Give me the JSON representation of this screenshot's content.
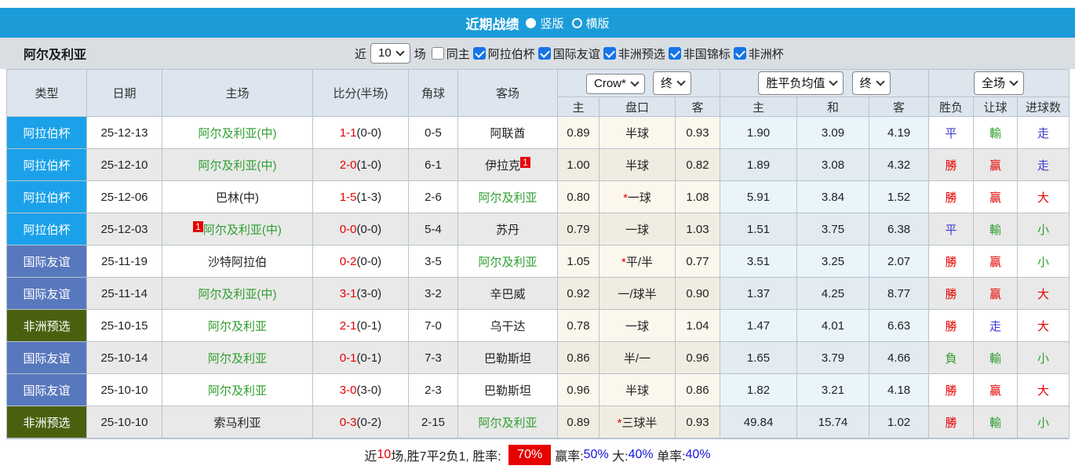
{
  "colors": {
    "header-blue": "#1b9cd9",
    "win-red": "#e60000",
    "lose-green": "#2f9e2f",
    "draw-blue": "#3b3bd1",
    "team-green": "#2f9e2f",
    "link-blue": "#1414dd"
  },
  "title_bar": {
    "title": "近期战绩",
    "layout_options": [
      {
        "label": "竖版",
        "selected": true
      },
      {
        "label": "横版",
        "selected": false
      }
    ]
  },
  "filter_bar": {
    "team_name": "阿尔及利亚",
    "recent_label": "近",
    "recent_count": "10",
    "games_label": "场",
    "checkboxes": [
      {
        "label": "同主",
        "checked": false
      },
      {
        "label": "阿拉伯杯",
        "checked": true
      },
      {
        "label": "国际友谊",
        "checked": true
      },
      {
        "label": "非洲预选",
        "checked": true
      },
      {
        "label": "非国锦标",
        "checked": true
      },
      {
        "label": "非洲杯",
        "checked": true
      }
    ]
  },
  "table": {
    "headers": {
      "left": [
        "类型",
        "日期",
        "主场",
        "比分(半场)",
        "角球",
        "客场"
      ],
      "sub": [
        "主",
        "盘口",
        "客",
        "主",
        "和",
        "客",
        "胜负",
        "让球",
        "进球数"
      ]
    },
    "selects": {
      "crown_company": "Crow*",
      "crown_stage": "终",
      "avg_name": "胜平负均值",
      "avg_stage": "终",
      "scope": "全场"
    },
    "type_colors": {
      "阿拉伯杯": "#1ba1ea",
      "国际友谊": "#5878be",
      "非洲预选": "#49610f"
    },
    "rows": [
      {
        "type": "阿拉伯杯",
        "date": "25-12-13",
        "home": "阿尔及利亚(中)",
        "home_green": true,
        "home_badge": "",
        "score": "1-1",
        "half": "(0-0)",
        "corner": "0-5",
        "away": "阿联酋",
        "away_green": false,
        "away_badge": "",
        "crown": [
          "0.89",
          "半球",
          "0.93"
        ],
        "avg": [
          "1.90",
          "3.09",
          "4.19"
        ],
        "results": [
          [
            "平",
            "b"
          ],
          [
            "輸",
            "g"
          ],
          [
            "走",
            "b"
          ]
        ]
      },
      {
        "type": "阿拉伯杯",
        "date": "25-12-10",
        "home": "阿尔及利亚(中)",
        "home_green": true,
        "home_badge": "",
        "score": "2-0",
        "half": "(1-0)",
        "corner": "6-1",
        "away": "伊拉克",
        "away_green": false,
        "away_badge": "1",
        "crown": [
          "1.00",
          "半球",
          "0.82"
        ],
        "avg": [
          "1.89",
          "3.08",
          "4.32"
        ],
        "results": [
          [
            "勝",
            "r"
          ],
          [
            "贏",
            "r"
          ],
          [
            "走",
            "b"
          ]
        ]
      },
      {
        "type": "阿拉伯杯",
        "date": "25-12-06",
        "home": "巴林(中)",
        "home_green": false,
        "home_badge": "",
        "score": "1-5",
        "half": "(1-3)",
        "corner": "2-6",
        "away": "阿尔及利亚",
        "away_green": true,
        "away_badge": "",
        "crown": [
          "0.80",
          "*一球",
          "1.08"
        ],
        "avg": [
          "5.91",
          "3.84",
          "1.52"
        ],
        "results": [
          [
            "勝",
            "r"
          ],
          [
            "贏",
            "r"
          ],
          [
            "大",
            "r"
          ]
        ]
      },
      {
        "type": "阿拉伯杯",
        "date": "25-12-03",
        "home": "阿尔及利亚(中)",
        "home_green": true,
        "home_badge": "1",
        "score": "0-0",
        "half": "(0-0)",
        "corner": "5-4",
        "away": "苏丹",
        "away_green": false,
        "away_badge": "",
        "crown": [
          "0.79",
          "一球",
          "1.03"
        ],
        "avg": [
          "1.51",
          "3.75",
          "6.38"
        ],
        "results": [
          [
            "平",
            "b"
          ],
          [
            "輸",
            "g"
          ],
          [
            "小",
            "g"
          ]
        ]
      },
      {
        "type": "国际友谊",
        "date": "25-11-19",
        "home": "沙特阿拉伯",
        "home_green": false,
        "home_badge": "",
        "score": "0-2",
        "half": "(0-0)",
        "corner": "3-5",
        "away": "阿尔及利亚",
        "away_green": true,
        "away_badge": "",
        "crown": [
          "1.05",
          "*平/半",
          "0.77"
        ],
        "avg": [
          "3.51",
          "3.25",
          "2.07"
        ],
        "results": [
          [
            "勝",
            "r"
          ],
          [
            "贏",
            "r"
          ],
          [
            "小",
            "g"
          ]
        ]
      },
      {
        "type": "国际友谊",
        "date": "25-11-14",
        "home": "阿尔及利亚(中)",
        "home_green": true,
        "home_badge": "",
        "score": "3-1",
        "half": "(3-0)",
        "corner": "3-2",
        "away": "辛巴威",
        "away_green": false,
        "away_badge": "",
        "crown": [
          "0.92",
          "一/球半",
          "0.90"
        ],
        "avg": [
          "1.37",
          "4.25",
          "8.77"
        ],
        "results": [
          [
            "勝",
            "r"
          ],
          [
            "贏",
            "r"
          ],
          [
            "大",
            "r"
          ]
        ]
      },
      {
        "type": "非洲预选",
        "date": "25-10-15",
        "home": "阿尔及利亚",
        "home_green": true,
        "home_badge": "",
        "score": "2-1",
        "half": "(0-1)",
        "corner": "7-0",
        "away": "乌干达",
        "away_green": false,
        "away_badge": "",
        "crown": [
          "0.78",
          "一球",
          "1.04"
        ],
        "avg": [
          "1.47",
          "4.01",
          "6.63"
        ],
        "results": [
          [
            "勝",
            "r"
          ],
          [
            "走",
            "b"
          ],
          [
            "大",
            "r"
          ]
        ]
      },
      {
        "type": "国际友谊",
        "date": "25-10-14",
        "home": "阿尔及利亚",
        "home_green": true,
        "home_badge": "",
        "score": "0-1",
        "half": "(0-1)",
        "corner": "7-3",
        "away": "巴勒斯坦",
        "away_green": false,
        "away_badge": "",
        "crown": [
          "0.86",
          "半/一",
          "0.96"
        ],
        "avg": [
          "1.65",
          "3.79",
          "4.66"
        ],
        "results": [
          [
            "負",
            "g"
          ],
          [
            "輸",
            "g"
          ],
          [
            "小",
            "g"
          ]
        ]
      },
      {
        "type": "国际友谊",
        "date": "25-10-10",
        "home": "阿尔及利亚",
        "home_green": true,
        "home_badge": "",
        "score": "3-0",
        "half": "(3-0)",
        "corner": "2-3",
        "away": "巴勒斯坦",
        "away_green": false,
        "away_badge": "",
        "crown": [
          "0.96",
          "半球",
          "0.86"
        ],
        "avg": [
          "1.82",
          "3.21",
          "4.18"
        ],
        "results": [
          [
            "勝",
            "r"
          ],
          [
            "贏",
            "r"
          ],
          [
            "大",
            "r"
          ]
        ]
      },
      {
        "type": "非洲预选",
        "date": "25-10-10",
        "home": "索马利亚",
        "home_green": false,
        "home_badge": "",
        "score": "0-3",
        "half": "(0-2)",
        "corner": "2-15",
        "away": "阿尔及利亚",
        "away_green": true,
        "away_badge": "",
        "crown": [
          "0.89",
          "*三球半",
          "0.93"
        ],
        "avg": [
          "49.84",
          "15.74",
          "1.02"
        ],
        "results": [
          [
            "勝",
            "r"
          ],
          [
            "輸",
            "g"
          ],
          [
            "小",
            "g"
          ]
        ]
      }
    ]
  },
  "summary": {
    "segments": [
      {
        "text": "近",
        "style": "k"
      },
      {
        "text": "10",
        "style": "r"
      },
      {
        "text": "场,胜7平2负1, 胜率: ",
        "style": "k"
      },
      {
        "text": "70%",
        "style": "chip"
      },
      {
        "text": "赢率:",
        "style": "k"
      },
      {
        "text": "50%",
        "style": "b"
      },
      {
        "text": " 大:",
        "style": "k"
      },
      {
        "text": "40%",
        "style": "b"
      },
      {
        "text": " 单率:",
        "style": "k"
      },
      {
        "text": "40%",
        "style": "b"
      }
    ]
  }
}
